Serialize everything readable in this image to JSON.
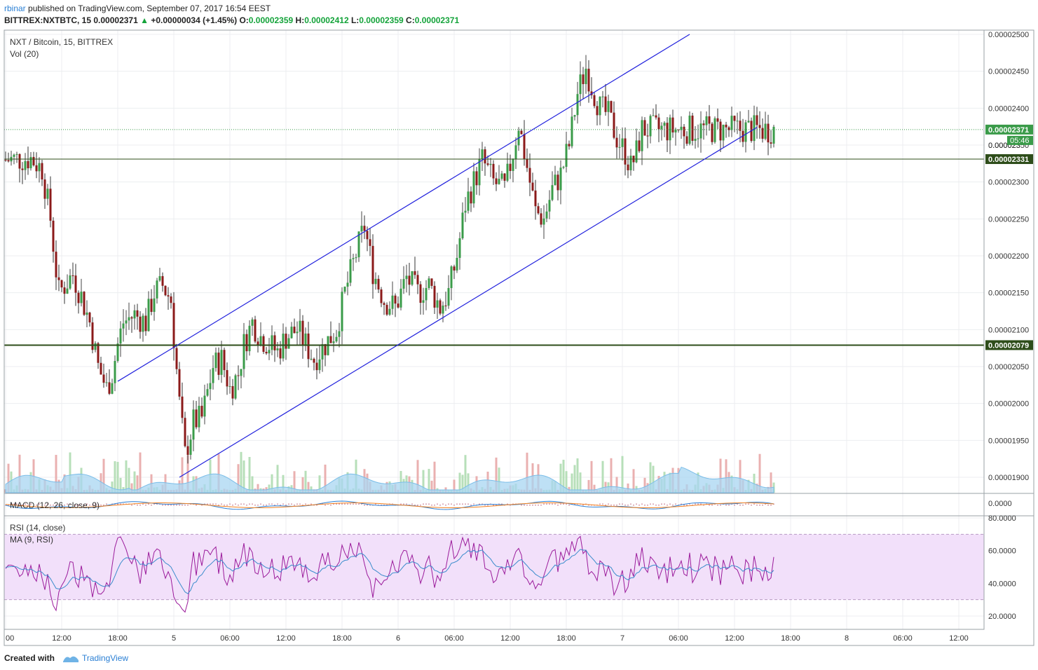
{
  "header": {
    "user": "rbinar",
    "published": "published on TradingView.com, September 07, 2017 16:54 EEST",
    "symbol_line": {
      "symbol": "BITTREX:NXTBTC, 15",
      "last": "0.00002371",
      "arrow": "▲",
      "change": "+0.00000034 (+1.45%)",
      "o_label": "O:",
      "o": "0.00002359",
      "h_label": "H:",
      "h": "0.00002412",
      "l_label": "L:",
      "l": "0.00002359",
      "c_label": "C:",
      "c": "0.00002371"
    }
  },
  "legend": {
    "title": "NXT / Bitcoin, 15, BITTREX",
    "vol": "Vol (20)",
    "macd": "MACD (12, 26, close, 9)",
    "rsi": "RSI (14, close)",
    "rsi_ma": "MA (9, RSI)"
  },
  "footer": {
    "created": "Created with",
    "brand": "TradingView"
  },
  "colors": {
    "up": "#3a9b49",
    "down": "#8b1a1a",
    "channel": "#2222dd",
    "hline": "#2e4d1a",
    "last_price": "#3a9b49",
    "vol_up": "#b7dfb9",
    "vol_down": "#eab0b0",
    "vol_ma": "#8ec9ee",
    "macd_line": "#2a7fd4",
    "signal_line": "#f08020",
    "rsi_line": "#9b1b9b",
    "rsi_ma_line": "#3a8ccc",
    "rsi_band": "#f2e0fa"
  },
  "chart_data": {
    "type": "candlestick",
    "price_axis": {
      "ylim": [
        1.85e-05,
        2.505e-05
      ],
      "ticks": [
        "0.00002500",
        "0.00002450",
        "0.00002400",
        "0.00002350",
        "0.00002300",
        "0.00002250",
        "0.00002200",
        "0.00002150",
        "0.00002100",
        "0.00002050",
        "0.00002000",
        "0.00001950",
        "0.00001900"
      ]
    },
    "time_axis": {
      "ticks": [
        "00",
        "12:00",
        "18:00",
        "5",
        "06:00",
        "12:00",
        "18:00",
        "6",
        "06:00",
        "12:00",
        "18:00",
        "7",
        "06:00",
        "12:00",
        "18:00",
        "8",
        "06:00",
        "12:00"
      ]
    },
    "price_labels": {
      "last": "0.00002371",
      "countdown": "05:46",
      "hline_upper": "0.00002331",
      "hline_lower": "0.00002079",
      "partial": "0.000023"
    },
    "horizontal_lines": [
      2.331e-05,
      2.079e-05
    ],
    "last_price": 2.371e-05,
    "channel_upper": [
      [
        2.0,
        2.03e-05
      ],
      [
        12.2,
        2.5e-05
      ]
    ],
    "channel_lower": [
      [
        3.1,
        1.9e-05
      ],
      [
        13.4,
        2.374e-05
      ]
    ],
    "macd_axis": {
      "ticks": [
        "0.0000"
      ]
    },
    "rsi_axis": {
      "ticks": [
        "80.0000",
        "60.0000",
        "40.0000",
        "20.0000"
      ],
      "band": [
        30,
        70
      ]
    },
    "close_path": [
      [
        0.0,
        2.33
      ],
      [
        0.45,
        2.332
      ],
      [
        0.65,
        2.318
      ],
      [
        0.8,
        2.25
      ],
      [
        0.9,
        2.18
      ],
      [
        0.95,
        2.15
      ],
      [
        1.05,
        2.16
      ],
      [
        1.2,
        2.175
      ],
      [
        1.35,
        2.145
      ],
      [
        1.5,
        2.11
      ],
      [
        1.65,
        2.05
      ],
      [
        1.8,
        2.02
      ],
      [
        1.9,
        2.04
      ],
      [
        2.0,
        2.08
      ],
      [
        2.1,
        2.11
      ],
      [
        2.3,
        2.12
      ],
      [
        2.5,
        2.11
      ],
      [
        2.65,
        2.15
      ],
      [
        2.8,
        2.16
      ],
      [
        2.95,
        2.14
      ],
      [
        3.0,
        2.09
      ],
      [
        3.1,
        2.0
      ],
      [
        3.2,
        1.93
      ],
      [
        3.35,
        1.975
      ],
      [
        3.5,
        1.98
      ],
      [
        3.7,
        2.05
      ],
      [
        3.85,
        2.06
      ],
      [
        4.0,
        2.02
      ],
      [
        4.15,
        2.04
      ],
      [
        4.25,
        2.08
      ],
      [
        4.4,
        2.11
      ],
      [
        4.55,
        2.09
      ],
      [
        4.7,
        2.08
      ],
      [
        4.85,
        2.07
      ],
      [
        5.0,
        2.09
      ],
      [
        5.2,
        2.1
      ],
      [
        5.35,
        2.08
      ],
      [
        5.5,
        2.06
      ],
      [
        5.7,
        2.08
      ],
      [
        5.9,
        2.1
      ],
      [
        6.05,
        2.15
      ],
      [
        6.2,
        2.19
      ],
      [
        6.4,
        2.24
      ],
      [
        6.55,
        2.18
      ],
      [
        6.75,
        2.14
      ],
      [
        6.95,
        2.13
      ],
      [
        7.15,
        2.17
      ],
      [
        7.35,
        2.15
      ],
      [
        7.55,
        2.16
      ],
      [
        7.75,
        2.13
      ],
      [
        7.9,
        2.15
      ],
      [
        8.05,
        2.2
      ],
      [
        8.2,
        2.27
      ],
      [
        8.35,
        2.3
      ],
      [
        8.5,
        2.33
      ],
      [
        8.7,
        2.3
      ],
      [
        8.9,
        2.29
      ],
      [
        9.05,
        2.34
      ],
      [
        9.15,
        2.38
      ],
      [
        9.3,
        2.32
      ],
      [
        9.45,
        2.26
      ],
      [
        9.6,
        2.25
      ],
      [
        9.75,
        2.29
      ],
      [
        9.9,
        2.31
      ],
      [
        10.05,
        2.35
      ],
      [
        10.2,
        2.42
      ],
      [
        10.35,
        2.455
      ],
      [
        10.45,
        2.43
      ],
      [
        10.6,
        2.4
      ],
      [
        10.75,
        2.39
      ],
      [
        10.9,
        2.36
      ],
      [
        11.05,
        2.34
      ],
      [
        11.15,
        2.32
      ],
      [
        11.25,
        2.34
      ],
      [
        11.35,
        2.371
      ]
    ]
  }
}
